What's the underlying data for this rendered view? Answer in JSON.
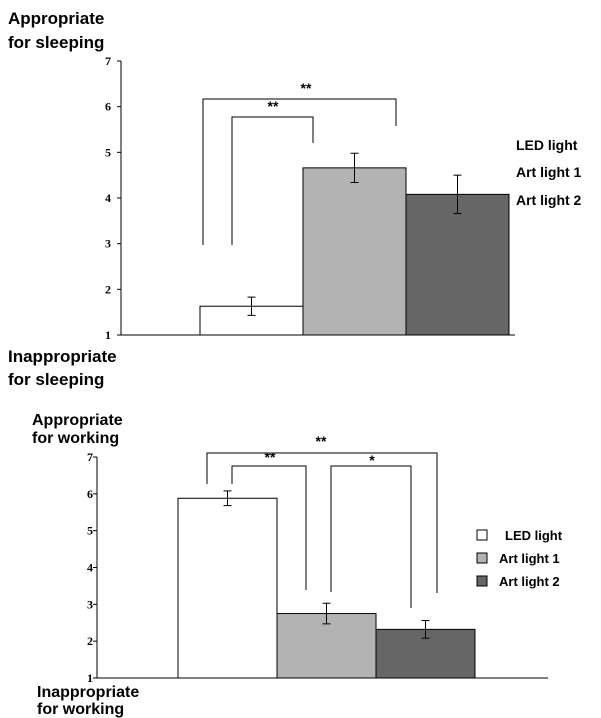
{
  "chart_data": [
    {
      "type": "bar",
      "top_label": [
        "Appropriate",
        "for sleeping"
      ],
      "bottom_label": [
        "Inappropriate",
        "for sleeping"
      ],
      "categories": [
        "LED light",
        "Art light 1",
        "Art light 2"
      ],
      "values": [
        1.63,
        4.66,
        4.08
      ],
      "errors": [
        0.2,
        0.32,
        0.42
      ],
      "ylim": [
        1,
        7
      ],
      "yticks": [
        "1",
        "2",
        "3",
        "4",
        "5",
        "6",
        "7"
      ],
      "legend": [
        "LED light",
        "Art light 1",
        "Art light 2"
      ],
      "legend_placement": "right",
      "colors": [
        "#ffffff",
        "#b3b3b3",
        "#666666"
      ],
      "significance": [
        {
          "from": "LED light",
          "to": "Art light 1",
          "label": "**"
        },
        {
          "from": "LED light",
          "to": "Art light 1",
          "label": "**"
        }
      ]
    },
    {
      "type": "bar",
      "top_label": [
        "Appropriate",
        "for working"
      ],
      "bottom_label": [
        "Inappropriate",
        "for working"
      ],
      "categories": [
        "LED light",
        "Art light 1",
        "Art light 2"
      ],
      "values": [
        5.88,
        2.75,
        2.32
      ],
      "errors": [
        0.2,
        0.28,
        0.24
      ],
      "ylim": [
        1,
        7
      ],
      "yticks": [
        "1",
        "2",
        "3",
        "4",
        "5",
        "6",
        "7"
      ],
      "legend": [
        "LED light",
        "Art light 1",
        "Art light 2"
      ],
      "legend_placement": "right",
      "colors": [
        "#ffffff",
        "#b3b3b3",
        "#666666"
      ],
      "significance": [
        {
          "from": "LED light",
          "to": "Art light 1",
          "label": "**"
        },
        {
          "from": "Art light 1",
          "to": "Art light 2",
          "label": "*"
        },
        {
          "from": "LED light",
          "to": "Art light 2",
          "label": "**"
        }
      ]
    }
  ]
}
